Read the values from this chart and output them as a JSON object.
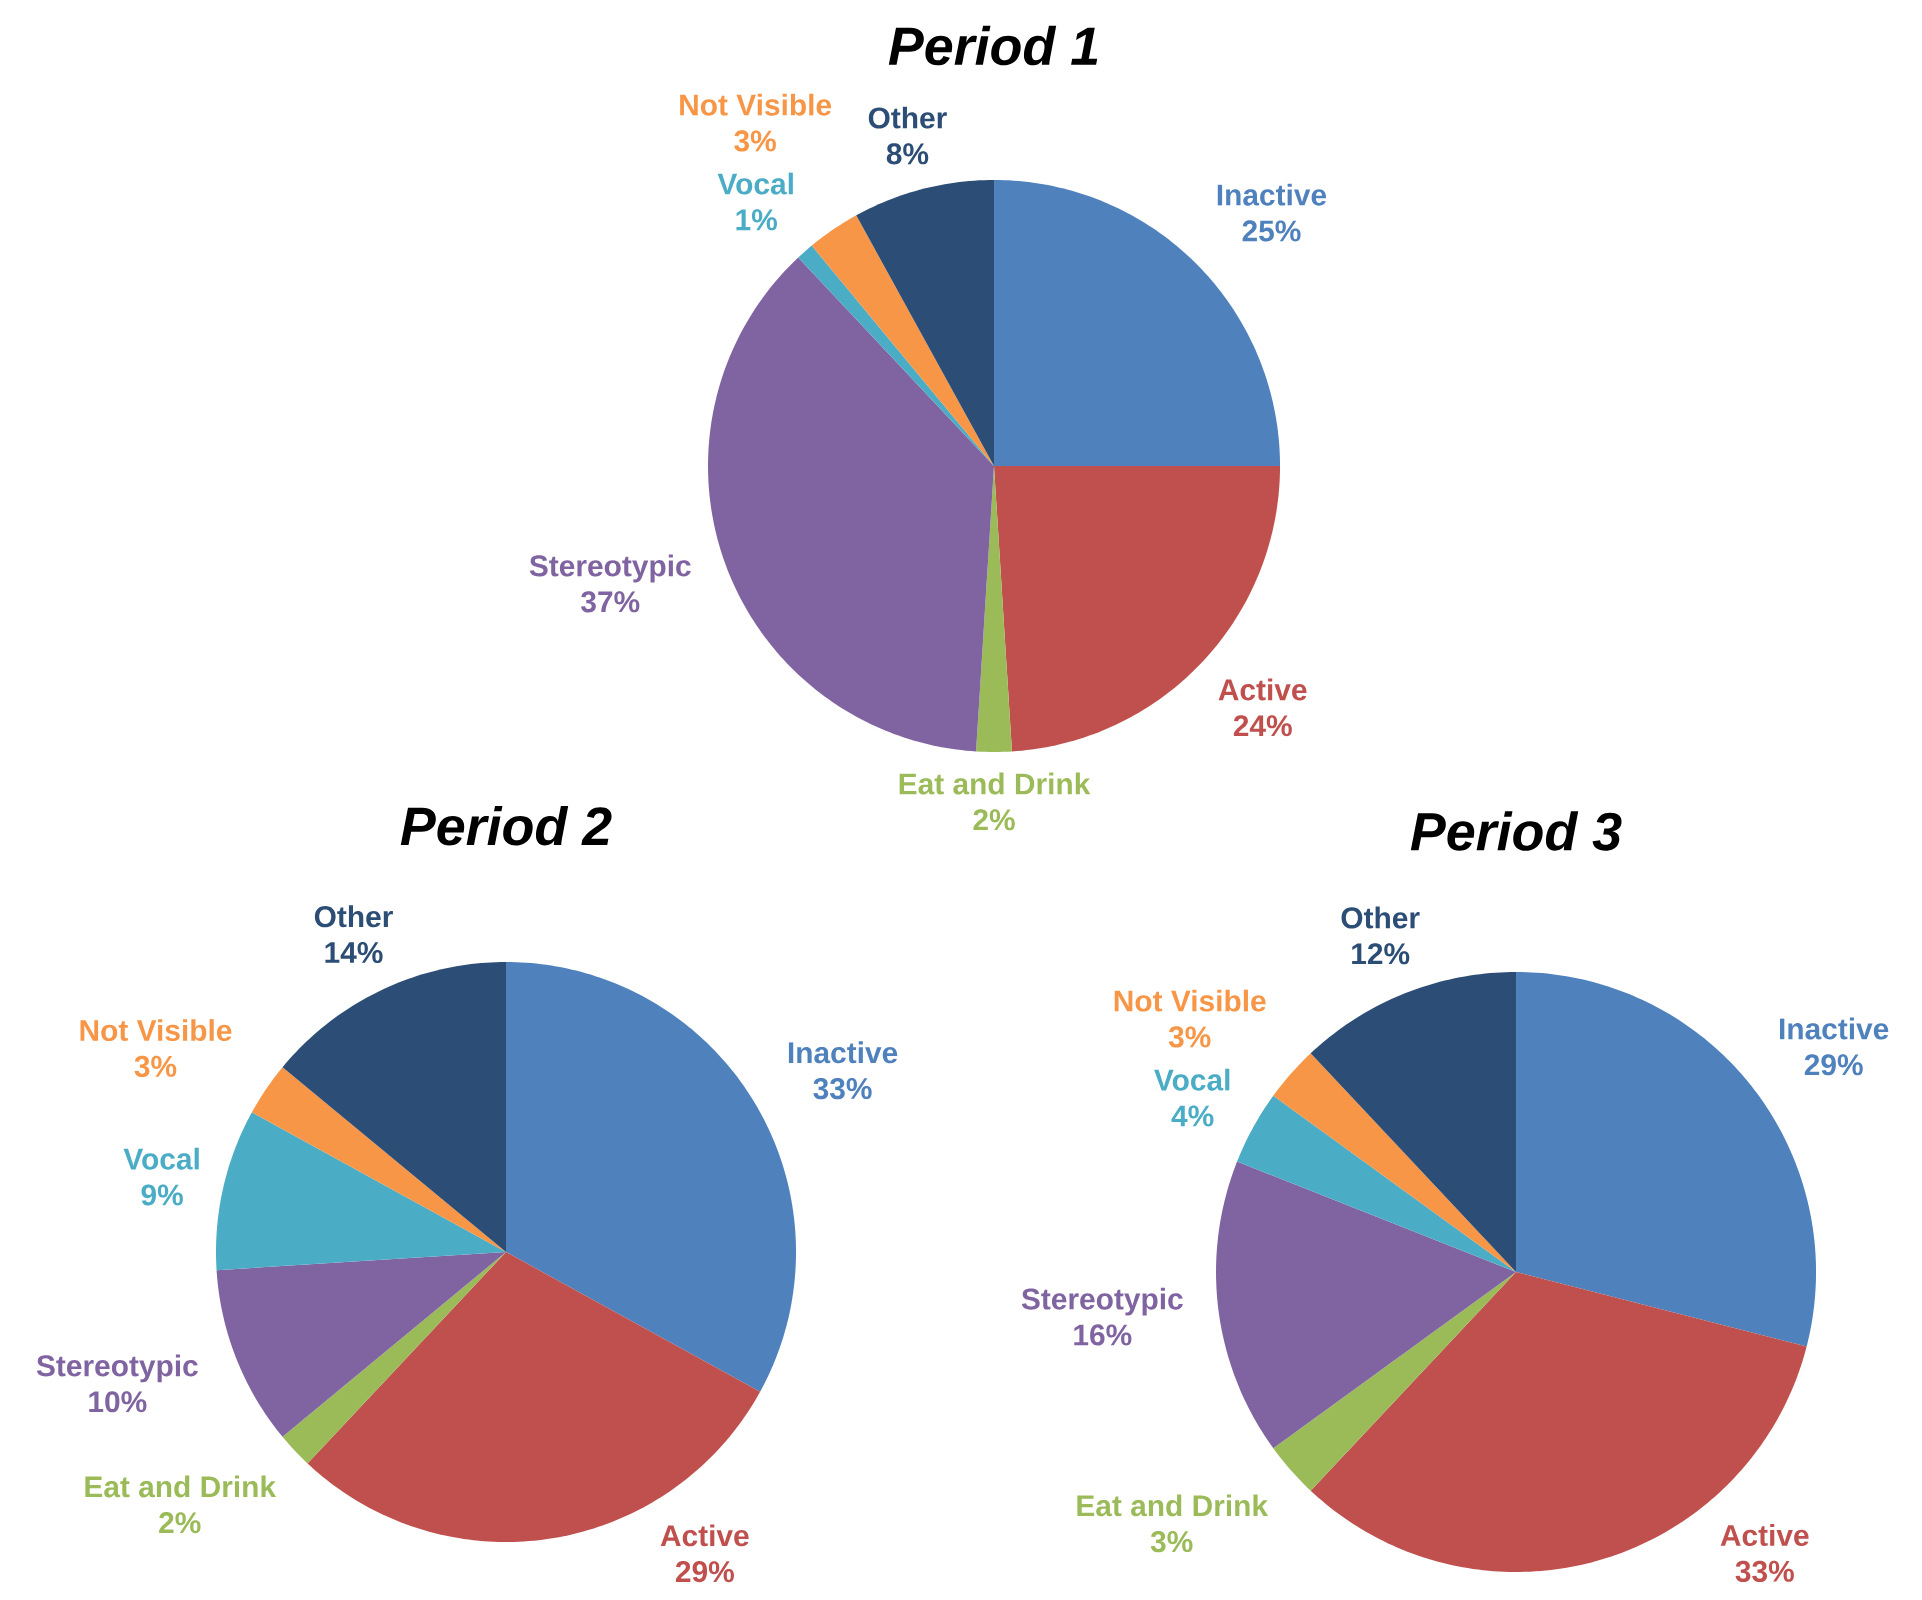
{
  "chart_data": [
    {
      "type": "pie",
      "title": "Period 1",
      "categories": [
        "Inactive",
        "Active",
        "Eat and Drink",
        "Stereotypic",
        "Vocal",
        "Not Visible",
        "Other"
      ],
      "values": [
        25,
        24,
        2,
        37,
        1,
        3,
        8
      ],
      "value_labels": [
        "25%",
        "24%",
        "2%",
        "37%",
        "1%",
        "3%",
        "8%"
      ],
      "colors": [
        "#4f81bd",
        "#c0504d",
        "#9bbb59",
        "#8064a2",
        "#4bacc6",
        "#f79646",
        "#2c4d75"
      ]
    },
    {
      "type": "pie",
      "title": "Period 2",
      "categories": [
        "Inactive",
        "Active",
        "Eat and Drink",
        "Stereotypic",
        "Vocal",
        "Not Visible",
        "Other"
      ],
      "values": [
        33,
        29,
        2,
        10,
        9,
        3,
        14
      ],
      "value_labels": [
        "33%",
        "29%",
        "2%",
        "10%",
        "9%",
        "3%",
        "14%"
      ],
      "colors": [
        "#4f81bd",
        "#c0504d",
        "#9bbb59",
        "#8064a2",
        "#4bacc6",
        "#f79646",
        "#2c4d75"
      ]
    },
    {
      "type": "pie",
      "title": "Period 3",
      "categories": [
        "Inactive",
        "Active",
        "Eat and Drink",
        "Stereotypic",
        "Vocal",
        "Not Visible",
        "Other"
      ],
      "values": [
        29,
        33,
        3,
        16,
        4,
        3,
        12
      ],
      "value_labels": [
        "29%",
        "33%",
        "3%",
        "16%",
        "4%",
        "3%",
        "12%"
      ],
      "colors": [
        "#4f81bd",
        "#c0504d",
        "#9bbb59",
        "#8064a2",
        "#4bacc6",
        "#f79646",
        "#2c4d75"
      ]
    }
  ]
}
